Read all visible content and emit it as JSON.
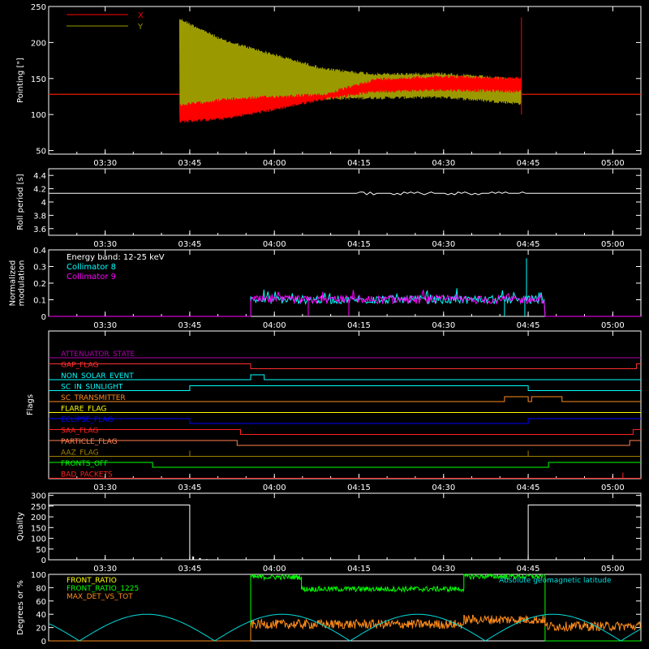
{
  "x_axis": {
    "ticks": [
      "03:30",
      "03:45",
      "04:00",
      "04:15",
      "04:30",
      "04:45",
      "05:00"
    ],
    "tick_hours": [
      3.5,
      3.75,
      4.0,
      4.25,
      4.5,
      4.75,
      5.0
    ],
    "range_hours": [
      3.333,
      5.083
    ]
  },
  "colors": {
    "red": "#ff0000",
    "olive": "#9a9a00",
    "white": "#ffffff",
    "cyan": "#00ffff",
    "magenta": "#ff00ff",
    "green": "#00ff00",
    "orange": "#ff8c1a",
    "yellow": "#ffff00",
    "blue": "#0000ff",
    "purple": "#b000b0",
    "salmon": "#ff7f50",
    "brown": "#a0522d",
    "darkyellow": "#a08000",
    "teal": "#00dddd"
  },
  "chart_data": [
    {
      "id": "pointing",
      "type": "line",
      "ylabel": "Pointing [\"]",
      "ylim": [
        45,
        250
      ],
      "yticks": [
        50,
        100,
        150,
        200,
        250
      ],
      "legend": [
        {
          "name": "X",
          "color": "#ff0000"
        },
        {
          "name": "Y",
          "color": "#9a9a00"
        }
      ],
      "series": [
        {
          "name": "Y",
          "color": "#9a9a00",
          "envelope": [
            {
              "t": 3.72,
              "lo": 98,
              "hi": 235
            },
            {
              "t": 3.85,
              "lo": 112,
              "hi": 205
            },
            {
              "t": 4.0,
              "lo": 117,
              "hi": 185
            },
            {
              "t": 4.15,
              "lo": 120,
              "hi": 165
            },
            {
              "t": 4.3,
              "lo": 121,
              "hi": 158
            },
            {
              "t": 4.5,
              "lo": 122,
              "hi": 159
            },
            {
              "t": 4.73,
              "lo": 113,
              "hi": 150
            }
          ],
          "flat": 128
        },
        {
          "name": "X",
          "color": "#ff0000",
          "envelope": [
            {
              "t": 3.72,
              "lo": 88,
              "hi": 115
            },
            {
              "t": 3.85,
              "lo": 92,
              "hi": 123
            },
            {
              "t": 4.0,
              "lo": 105,
              "hi": 127
            },
            {
              "t": 4.15,
              "lo": 120,
              "hi": 130
            },
            {
              "t": 4.3,
              "lo": 130,
              "hi": 151
            },
            {
              "t": 4.5,
              "lo": 132,
              "hi": 155
            },
            {
              "t": 4.73,
              "lo": 130,
              "hi": 152
            }
          ],
          "flat": 128
        }
      ]
    },
    {
      "id": "roll",
      "type": "line",
      "ylabel": "Roll period [s]",
      "ylim": [
        3.5,
        4.5
      ],
      "yticks": [
        3.6,
        3.8,
        4.0,
        4.2,
        4.4
      ],
      "series": [
        {
          "name": "",
          "color": "#ffffff",
          "value": 4.13
        }
      ]
    },
    {
      "id": "modulation",
      "type": "line",
      "ylabel": [
        "Normalized",
        "modulation"
      ],
      "ylim": [
        0,
        0.4
      ],
      "yticks": [
        0.0,
        0.1,
        0.2,
        0.3,
        0.4
      ],
      "annotations": [
        {
          "text": "Energy band: 12-25 keV",
          "color": "#ffffff"
        },
        {
          "text": "Collimator 8",
          "color": "#00ffff"
        },
        {
          "text": "Collimator 9",
          "color": "#ff00ff"
        }
      ],
      "active_range": [
        3.93,
        4.8
      ],
      "mean": 0.1,
      "series": [
        {
          "name": "Collimator 8",
          "color": "#00ffff"
        },
        {
          "name": "Collimator 9",
          "color": "#ff00ff"
        }
      ]
    },
    {
      "id": "flags",
      "type": "line",
      "ylabel": "Flags",
      "flags": [
        {
          "name": "ATTENUATOR_STATE",
          "color": "#b000b0",
          "segments": [
            [
              3.333,
              5.083,
              0
            ]
          ]
        },
        {
          "name": "GAP_FLAG",
          "color": "#ff3030",
          "segments": [
            [
              3.333,
              3.93,
              1
            ],
            [
              3.93,
              5.07,
              0
            ],
            [
              5.07,
              5.083,
              1
            ]
          ]
        },
        {
          "name": "NON_SOLAR_EVENT",
          "color": "#00ffff",
          "segments": [
            [
              3.333,
              3.93,
              0
            ],
            [
              3.93,
              3.97,
              1
            ],
            [
              3.97,
              5.083,
              0
            ]
          ]
        },
        {
          "name": "SC_IN_SUNLIGHT",
          "color": "#00ffff",
          "segments": [
            [
              3.333,
              3.75,
              0
            ],
            [
              3.75,
              4.75,
              1
            ],
            [
              4.75,
              5.083,
              0
            ]
          ]
        },
        {
          "name": "SC_TRANSMITTER",
          "color": "#ff8c1a",
          "segments": [
            [
              3.333,
              4.68,
              0
            ],
            [
              4.68,
              4.75,
              1
            ],
            [
              4.75,
              4.76,
              0
            ],
            [
              4.76,
              4.85,
              1
            ],
            [
              4.85,
              5.083,
              0
            ]
          ]
        },
        {
          "name": "FLARE_FLAG",
          "color": "#ffff00",
          "segments": [
            [
              3.333,
              5.083,
              0
            ]
          ]
        },
        {
          "name": "ECLIPSE_FLAG",
          "color": "#0000ff",
          "segments": [
            [
              3.333,
              3.75,
              1
            ],
            [
              3.75,
              4.75,
              0
            ],
            [
              4.75,
              5.083,
              1
            ]
          ]
        },
        {
          "name": "SAA_FLAG",
          "color": "#ff2020",
          "segments": [
            [
              3.333,
              3.9,
              1
            ],
            [
              3.9,
              5.06,
              0
            ],
            [
              5.06,
              5.083,
              1
            ]
          ]
        },
        {
          "name": "PARTICLE_FLAG",
          "color": "#ff7f50",
          "segments": [
            [
              3.333,
              3.89,
              1
            ],
            [
              3.89,
              5.05,
              0
            ],
            [
              5.05,
              5.083,
              1
            ]
          ]
        },
        {
          "name": "AAZ_FLAG",
          "color": "#a08000",
          "segments": [
            [
              3.333,
              5.083,
              0
            ]
          ],
          "spikes": [
            3.75,
            4.75
          ]
        },
        {
          "name": "FRONTS_OFF",
          "color": "#00ff00",
          "segments": [
            [
              3.333,
              3.64,
              1
            ],
            [
              3.64,
              4.81,
              0
            ],
            [
              4.81,
              5.083,
              1
            ]
          ]
        },
        {
          "name": "BAD_PACKETS",
          "color": "#ff2020",
          "segments": [
            [
              3.333,
              5.083,
              0
            ]
          ],
          "spikes": [
            5.03
          ]
        }
      ]
    },
    {
      "id": "quality",
      "type": "line",
      "ylabel": "Quality",
      "ylim": [
        0,
        310
      ],
      "yticks": [
        0,
        50,
        100,
        150,
        200,
        250,
        300
      ],
      "series": [
        {
          "name": "",
          "color": "#ffffff",
          "segments": [
            [
              3.333,
              3.75,
              255
            ],
            [
              3.75,
              4.75,
              0
            ],
            [
              4.75,
              5.083,
              255
            ]
          ],
          "blips": [
            [
              3.76,
              15
            ],
            [
              3.78,
              8
            ],
            [
              3.8,
              3
            ]
          ]
        }
      ]
    },
    {
      "id": "ratios",
      "type": "line",
      "ylabel": "Degrees or %",
      "ylim": [
        0,
        100
      ],
      "yticks": [
        0,
        20,
        40,
        60,
        80,
        100
      ],
      "legend": [
        {
          "name": "FRONT_RATIO",
          "color": "#ffff00"
        },
        {
          "name": "FRONT_RATIO_1225",
          "color": "#00ff00"
        },
        {
          "name": "MAX_DET_VS_TOT",
          "color": "#ff8c1a"
        },
        {
          "name": "Absolute geomagnetic latitude",
          "color": "#00dddd"
        }
      ],
      "series": [
        {
          "name": "FRONT_RATIO_1225",
          "color": "#00ff00",
          "levels": [
            [
              3.333,
              3.93,
              0
            ],
            [
              3.93,
              4.08,
              96
            ],
            [
              4.08,
              4.56,
              78
            ],
            [
              4.56,
              4.8,
              97
            ],
            [
              4.8,
              5.083,
              0
            ]
          ]
        },
        {
          "name": "MAX_DET_VS_TOT",
          "color": "#ff8c1a",
          "levels": [
            [
              3.333,
              3.93,
              0
            ],
            [
              3.93,
              4.56,
              25
            ],
            [
              4.56,
              4.8,
              32
            ],
            [
              4.8,
              5.083,
              22
            ]
          ]
        },
        {
          "name": "Absolute geomagnetic latitude",
          "color": "#00dddd",
          "period_hours": 0.8,
          "amp": 40,
          "phase": 3.5
        }
      ]
    }
  ]
}
